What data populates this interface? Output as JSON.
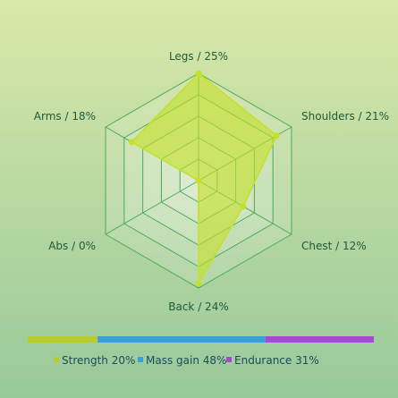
{
  "chart_data": [
    {
      "type": "radar",
      "title": "",
      "axes": [
        "Legs",
        "Shoulders",
        "Chest",
        "Back",
        "Abs",
        "Arms"
      ],
      "labels": [
        "Legs / 25%",
        "Shoulders / 21%",
        "Chest / 12%",
        "Back / 24%",
        "Abs / 0%",
        "Arms / 18%"
      ],
      "values": [
        25,
        21,
        12,
        24,
        0,
        18
      ],
      "max": 25,
      "rings": 5,
      "colors": {
        "area": "#c5e02a",
        "point": "#c5e02a",
        "grid": "#4caa57",
        "web_fill": "#ffffff"
      }
    },
    {
      "type": "bar",
      "orientation": "stacked-horizontal",
      "categories": [
        "Strength",
        "Mass gain",
        "Endurance"
      ],
      "values": [
        20,
        48,
        31
      ],
      "legend": [
        "Strength 20%",
        "Mass gain 48%",
        "Endurance 31%"
      ],
      "colors": [
        "#b9cc2e",
        "#3aa0d8",
        "#a64ad6"
      ]
    }
  ]
}
